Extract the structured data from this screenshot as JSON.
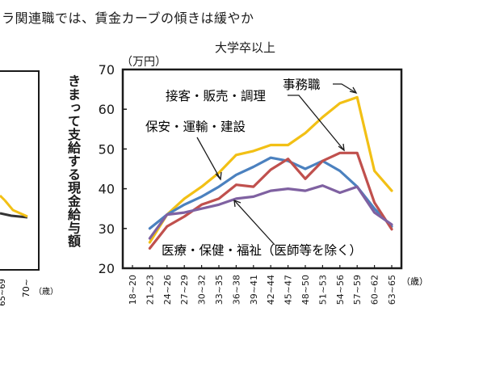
{
  "header_text": "ラ関連職では、賃金カーブの傾きは緩やか",
  "left_chart": {
    "x_tick_labels": [
      "65~69",
      "70~"
    ],
    "x_unit": "（歳）"
  },
  "chart_data": {
    "type": "line",
    "title": "大学卒以上",
    "unit_label": "（万円）",
    "ylabel": "きまって支給する現金給与額",
    "x_unit": "（歳）",
    "categories": [
      "18~20",
      "21~23",
      "24~26",
      "27~29",
      "30~32",
      "33~35",
      "36~38",
      "39~41",
      "42~44",
      "45~47",
      "48~50",
      "51~53",
      "54~56",
      "57~59",
      "60~62",
      "63~65"
    ],
    "ylim": [
      20,
      70
    ],
    "yticks": [
      20,
      30,
      40,
      50,
      60,
      70
    ],
    "grid": false,
    "series": [
      {
        "name": "事務職",
        "color": "#f2c015",
        "values": [
          null,
          26.5,
          33.5,
          37.5,
          40.5,
          44,
          48.5,
          49.5,
          51,
          51,
          54,
          58,
          61.5,
          63,
          44.5,
          39.5
        ]
      },
      {
        "name": "保安・運輸・建設",
        "color": "#4b81bf",
        "values": [
          null,
          30,
          33.5,
          36,
          38,
          40.5,
          43.5,
          45.5,
          47.8,
          47,
          45,
          47,
          44.5,
          40.5,
          35,
          30.5
        ]
      },
      {
        "name": "接客・販売・調理",
        "color": "#c0504d",
        "values": [
          null,
          25,
          30.5,
          33,
          36,
          37.5,
          41,
          40.5,
          44.8,
          47.5,
          42.5,
          47,
          49,
          49,
          36.5,
          29.8
        ]
      },
      {
        "name": "医療・保健・福祉（医師等を除く）",
        "color": "#7f61a1",
        "values": [
          null,
          27.5,
          33.5,
          34,
          35,
          36,
          37.5,
          38,
          39.5,
          40,
          39.5,
          40.8,
          39,
          40.5,
          34,
          31
        ]
      }
    ]
  }
}
